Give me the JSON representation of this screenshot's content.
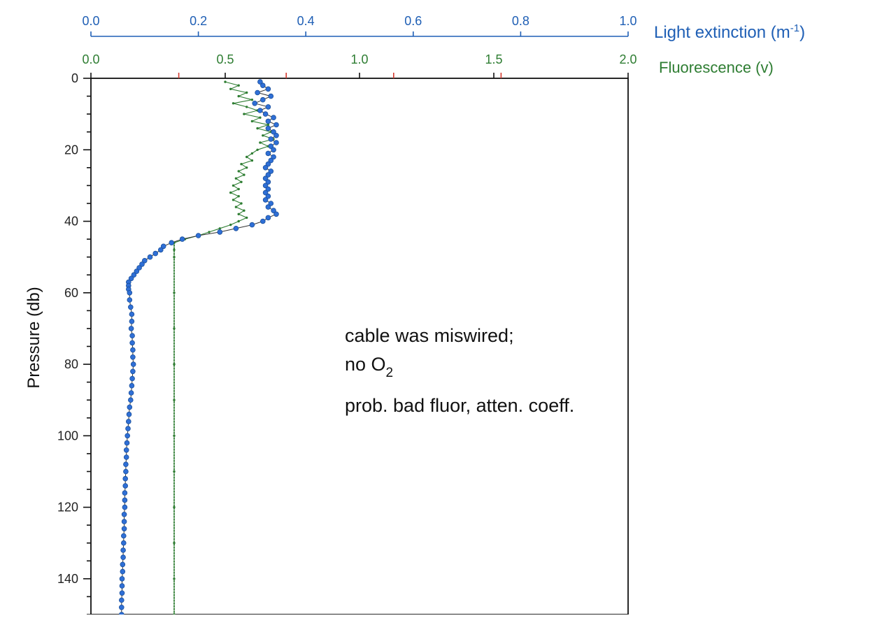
{
  "colors": {
    "extinction": "#1f5fb5",
    "extinction_marker": "#2f6fd6",
    "fluorescence": "#2e7d32",
    "red_tick": "#d43a2f",
    "axis": "#111111",
    "connector": "#333333"
  },
  "chart_data": {
    "type": "line",
    "top_axis": {
      "label": "Light extinction (m",
      "label_sup": "-1",
      "label_close": ")",
      "range": [
        0.0,
        1.0
      ],
      "ticks": [
        "0.0",
        "0.2",
        "0.4",
        "0.6",
        "0.8",
        "1.0"
      ],
      "tick_values": [
        0.0,
        0.2,
        0.4,
        0.6,
        0.8,
        1.0
      ]
    },
    "secondary_axis": {
      "label": "Fluorescence (v)",
      "range": [
        0.0,
        2.0
      ],
      "ticks": [
        "0.0",
        "0.5",
        "1.0",
        "1.5",
        "2.0"
      ],
      "tick_values": [
        0.0,
        0.5,
        1.0,
        1.5,
        2.0
      ]
    },
    "y_axis": {
      "label": "Pressure (db)",
      "range": [
        0,
        150
      ],
      "inverted": true,
      "ticks": [
        "0",
        "20",
        "40",
        "60",
        "80",
        "100",
        "120",
        "140"
      ],
      "tick_values": [
        0,
        20,
        40,
        60,
        80,
        100,
        120,
        140
      ]
    },
    "annotation": {
      "line1": "cable was miswired;",
      "line2_prefix": "no O",
      "line2_sub": "2",
      "line3": "prob. bad fluor, atten. coeff."
    },
    "series": [
      {
        "axis": "top",
        "marker": "circle",
        "points": [
          [
            0.315,
            1
          ],
          [
            0.32,
            2
          ],
          [
            0.33,
            3
          ],
          [
            0.31,
            4
          ],
          [
            0.335,
            5
          ],
          [
            0.32,
            6
          ],
          [
            0.305,
            7
          ],
          [
            0.33,
            8
          ],
          [
            0.315,
            9
          ],
          [
            0.325,
            10
          ],
          [
            0.34,
            11
          ],
          [
            0.33,
            12
          ],
          [
            0.345,
            13
          ],
          [
            0.33,
            14
          ],
          [
            0.34,
            15
          ],
          [
            0.345,
            16
          ],
          [
            0.335,
            17
          ],
          [
            0.345,
            18
          ],
          [
            0.335,
            19
          ],
          [
            0.34,
            20
          ],
          [
            0.33,
            21
          ],
          [
            0.34,
            22
          ],
          [
            0.335,
            23
          ],
          [
            0.33,
            24
          ],
          [
            0.325,
            25
          ],
          [
            0.335,
            26
          ],
          [
            0.33,
            27
          ],
          [
            0.325,
            28
          ],
          [
            0.33,
            29
          ],
          [
            0.325,
            30
          ],
          [
            0.33,
            31
          ],
          [
            0.325,
            32
          ],
          [
            0.33,
            33
          ],
          [
            0.325,
            34
          ],
          [
            0.335,
            35
          ],
          [
            0.33,
            36
          ],
          [
            0.34,
            37
          ],
          [
            0.345,
            38
          ],
          [
            0.33,
            39
          ],
          [
            0.32,
            40
          ],
          [
            0.3,
            41
          ],
          [
            0.27,
            42
          ],
          [
            0.24,
            43
          ],
          [
            0.2,
            44
          ],
          [
            0.17,
            45
          ],
          [
            0.15,
            46
          ],
          [
            0.135,
            47
          ],
          [
            0.13,
            48
          ],
          [
            0.12,
            49
          ],
          [
            0.11,
            50
          ],
          [
            0.1,
            51
          ],
          [
            0.095,
            52
          ],
          [
            0.09,
            53
          ],
          [
            0.085,
            54
          ],
          [
            0.08,
            55
          ],
          [
            0.075,
            56
          ],
          [
            0.07,
            57
          ],
          [
            0.07,
            58
          ],
          [
            0.07,
            59
          ],
          [
            0.072,
            60
          ],
          [
            0.072,
            62
          ],
          [
            0.074,
            64
          ],
          [
            0.076,
            66
          ],
          [
            0.076,
            68
          ],
          [
            0.075,
            70
          ],
          [
            0.077,
            72
          ],
          [
            0.077,
            74
          ],
          [
            0.078,
            76
          ],
          [
            0.078,
            78
          ],
          [
            0.079,
            80
          ],
          [
            0.078,
            82
          ],
          [
            0.077,
            84
          ],
          [
            0.076,
            86
          ],
          [
            0.075,
            88
          ],
          [
            0.074,
            90
          ],
          [
            0.072,
            92
          ],
          [
            0.071,
            94
          ],
          [
            0.07,
            96
          ],
          [
            0.069,
            98
          ],
          [
            0.068,
            100
          ],
          [
            0.067,
            102
          ],
          [
            0.066,
            104
          ],
          [
            0.066,
            106
          ],
          [
            0.065,
            108
          ],
          [
            0.065,
            110
          ],
          [
            0.064,
            112
          ],
          [
            0.064,
            114
          ],
          [
            0.063,
            116
          ],
          [
            0.063,
            118
          ],
          [
            0.063,
            120
          ],
          [
            0.062,
            122
          ],
          [
            0.062,
            124
          ],
          [
            0.062,
            126
          ],
          [
            0.061,
            128
          ],
          [
            0.061,
            130
          ],
          [
            0.06,
            132
          ],
          [
            0.06,
            134
          ],
          [
            0.059,
            136
          ],
          [
            0.059,
            138
          ],
          [
            0.058,
            140
          ],
          [
            0.058,
            142
          ],
          [
            0.058,
            144
          ],
          [
            0.057,
            146
          ],
          [
            0.057,
            148
          ],
          [
            0.057,
            150
          ]
        ]
      },
      {
        "axis": "secondary",
        "marker": "small-dot",
        "points": [
          [
            0.5,
            1
          ],
          [
            0.55,
            2
          ],
          [
            0.52,
            3
          ],
          [
            0.58,
            4
          ],
          [
            0.55,
            5
          ],
          [
            0.6,
            6
          ],
          [
            0.53,
            7
          ],
          [
            0.58,
            8
          ],
          [
            0.62,
            9
          ],
          [
            0.57,
            10
          ],
          [
            0.63,
            11
          ],
          [
            0.6,
            12
          ],
          [
            0.66,
            13
          ],
          [
            0.62,
            14
          ],
          [
            0.67,
            15
          ],
          [
            0.64,
            16
          ],
          [
            0.68,
            17
          ],
          [
            0.63,
            18
          ],
          [
            0.66,
            19
          ],
          [
            0.62,
            20
          ],
          [
            0.6,
            21
          ],
          [
            0.58,
            22
          ],
          [
            0.6,
            23
          ],
          [
            0.56,
            24
          ],
          [
            0.58,
            25
          ],
          [
            0.55,
            26
          ],
          [
            0.57,
            27
          ],
          [
            0.54,
            28
          ],
          [
            0.56,
            29
          ],
          [
            0.53,
            30
          ],
          [
            0.55,
            31
          ],
          [
            0.52,
            32
          ],
          [
            0.55,
            33
          ],
          [
            0.53,
            34
          ],
          [
            0.56,
            35
          ],
          [
            0.54,
            36
          ],
          [
            0.57,
            37
          ],
          [
            0.55,
            38
          ],
          [
            0.58,
            39
          ],
          [
            0.55,
            40
          ],
          [
            0.52,
            41
          ],
          [
            0.48,
            42
          ],
          [
            0.44,
            43
          ],
          [
            0.4,
            44
          ],
          [
            0.35,
            45
          ],
          [
            0.31,
            46
          ],
          [
            0.31,
            48
          ],
          [
            0.31,
            50
          ],
          [
            0.31,
            60
          ],
          [
            0.31,
            70
          ],
          [
            0.31,
            80
          ],
          [
            0.31,
            90
          ],
          [
            0.31,
            100
          ],
          [
            0.31,
            110
          ],
          [
            0.31,
            120
          ],
          [
            0.31,
            130
          ],
          [
            0.31,
            140
          ],
          [
            0.31,
            150
          ]
        ]
      }
    ]
  }
}
